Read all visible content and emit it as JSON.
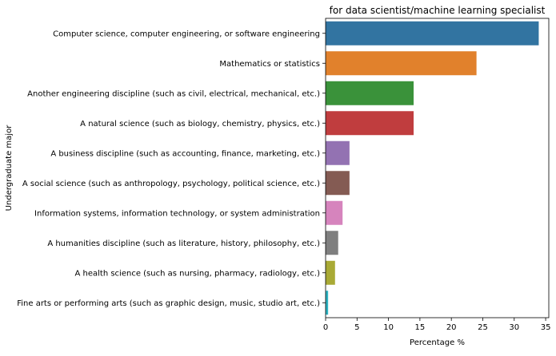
{
  "chart_data": {
    "type": "bar",
    "orientation": "horizontal",
    "title": "for data scientist/machine learning specialist",
    "xlabel": "Percentage %",
    "ylabel": "Undergraduate major",
    "xlim": [
      0,
      35.5
    ],
    "xticks": [
      0,
      5,
      10,
      15,
      20,
      25,
      30,
      35
    ],
    "grid": false,
    "categories": [
      "Computer science, computer engineering, or software engineering",
      "Mathematics or statistics",
      "Another engineering discipline (such as civil, electrical, mechanical, etc.)",
      "A natural science (such as biology, chemistry, physics, etc.)",
      "A business discipline (such as accounting, finance, marketing, etc.)",
      "A social science (such as anthropology, psychology, political science, etc.)",
      "Information systems, information technology, or system administration",
      "A humanities discipline (such as literature, history, philosophy, etc.)",
      "A health science (such as nursing, pharmacy, radiology, etc.)",
      "Fine arts or performing arts (such as graphic design, music, studio art, etc.)"
    ],
    "values": [
      33.9,
      24.0,
      14.0,
      14.0,
      3.8,
      3.8,
      2.7,
      2.0,
      1.5,
      0.4
    ],
    "colors": [
      "#3274a1",
      "#e1812c",
      "#3a923a",
      "#c03d3e",
      "#9372b2",
      "#845b53",
      "#d684bd",
      "#7f7f7f",
      "#a9aa35",
      "#2eb3c2"
    ]
  }
}
